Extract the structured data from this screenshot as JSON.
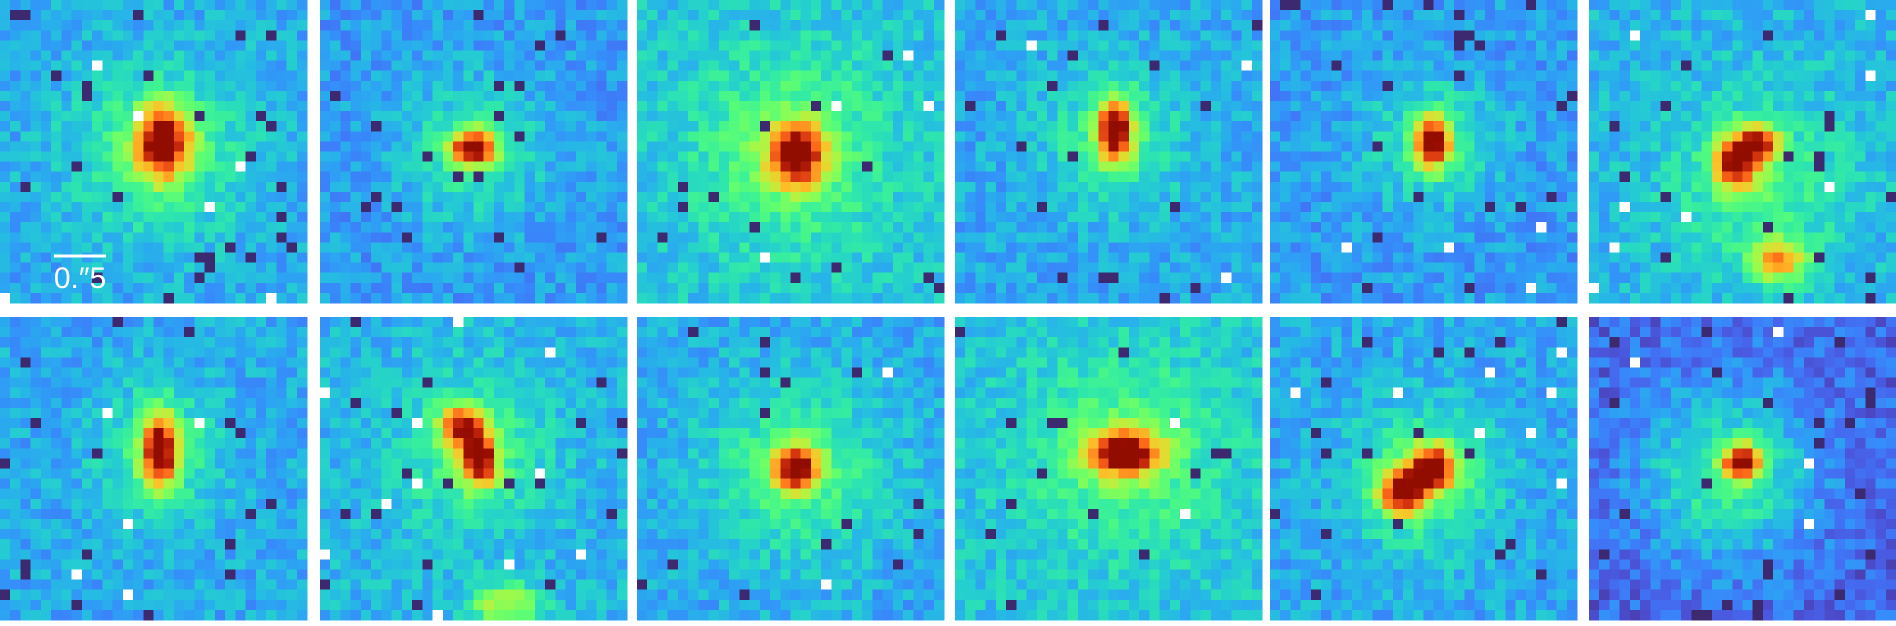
{
  "scale_bar": {
    "label": "0.″5"
  }
}
